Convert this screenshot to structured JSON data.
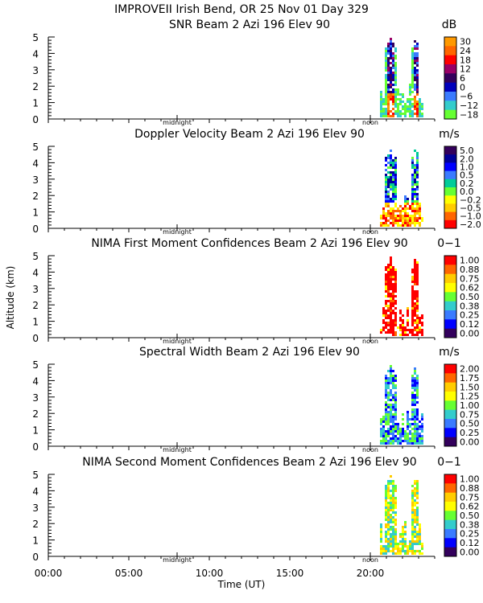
{
  "figure": {
    "title": "IMPROVEII  Irish Bend, OR  25 Nov 01 Day 329",
    "ylabel": "Altitude (km)",
    "xlabel": "Time (UT)"
  },
  "chart_data": {
    "type": "heatmap",
    "x_ticks": [
      "00:00",
      "05:00",
      "10:00",
      "15:00",
      "20:00"
    ],
    "x_tick_hours": [
      0,
      5,
      10,
      15,
      20
    ],
    "xlim": [
      0,
      24
    ],
    "ylim": [
      0,
      5
    ],
    "y_ticks": [
      "0",
      "1",
      "2",
      "3",
      "4",
      "5"
    ],
    "time_markers": [
      {
        "label": "midnight",
        "hour": 8
      },
      {
        "label": "noon",
        "hour": 20
      }
    ],
    "panels": [
      {
        "title": "SNR Beam 2 Azi 196 Elev 90",
        "unit": "dB",
        "colorbar_labels": [
          "30",
          "24",
          "18",
          "12",
          "6",
          "0",
          "−6",
          "−12",
          "−18"
        ],
        "colors": [
          "#ff9900",
          "#ff6600",
          "#ff0000",
          "#990066",
          "#33005c",
          "#0000bb",
          "#3a7bff",
          "#33cccc",
          "#66ff33"
        ]
      },
      {
        "title": "Doppler Velocity Beam 2 Azi 196 Elev 90",
        "unit": "m/s",
        "colorbar_labels": [
          "5.0",
          "2.0",
          "1.0",
          "0.5",
          "0.2",
          "0.0",
          "−0.2",
          "−0.5",
          "−1.0",
          "−2.0"
        ],
        "colors": [
          "#33005c",
          "#000099",
          "#0000ff",
          "#3a7bff",
          "#00cc99",
          "#66ff33",
          "#ffff00",
          "#ffcc00",
          "#ff6600",
          "#ff0000"
        ]
      },
      {
        "title": "NIMA First Moment Confidences Beam 2 Azi 196 Elev 90",
        "unit": "0−1",
        "colorbar_labels": [
          "1.00",
          "0.88",
          "0.75",
          "0.62",
          "0.50",
          "0.38",
          "0.25",
          "0.12",
          "0.00"
        ],
        "colors": [
          "#ff0000",
          "#ff6600",
          "#ffcc00",
          "#ffff00",
          "#66ff33",
          "#33cccc",
          "#3a7bff",
          "#0000ff",
          "#33005c"
        ]
      },
      {
        "title": "Spectral Width Beam 2 Azi 196 Elev 90",
        "unit": "m/s",
        "colorbar_labels": [
          "2.00",
          "1.75",
          "1.50",
          "1.25",
          "1.00",
          "0.75",
          "0.50",
          "0.25",
          "0.00"
        ],
        "colors": [
          "#ff0000",
          "#ff6600",
          "#ffcc00",
          "#ffff00",
          "#66ff33",
          "#33cccc",
          "#3a7bff",
          "#0000ff",
          "#33005c"
        ]
      },
      {
        "title": "NIMA Second Moment Confidences Beam 2 Azi 196 Elev 90",
        "unit": "0−1",
        "colorbar_labels": [
          "1.00",
          "0.88",
          "0.75",
          "0.62",
          "0.50",
          "0.38",
          "0.25",
          "0.12",
          "0.00"
        ],
        "colors": [
          "#ff0000",
          "#ff6600",
          "#ffcc00",
          "#ffff00",
          "#66ff33",
          "#33cccc",
          "#3a7bff",
          "#0000ff",
          "#33005c"
        ]
      }
    ]
  }
}
